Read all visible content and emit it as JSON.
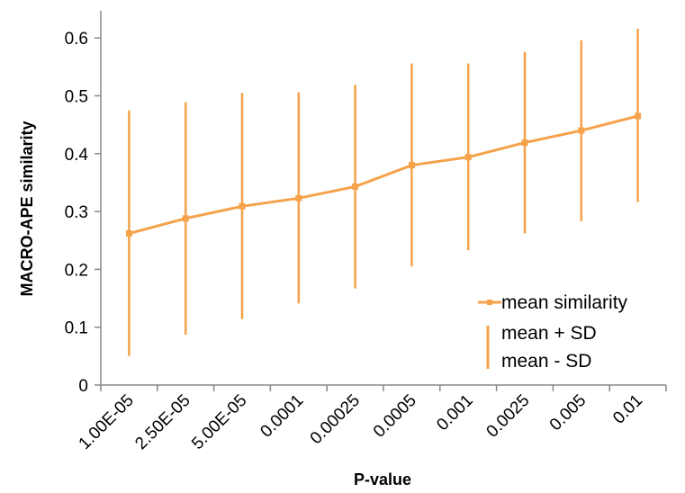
{
  "chart_data": {
    "type": "line",
    "xlabel": "P-value",
    "ylabel": "MACRO-APE similarity",
    "categories": [
      "1.00E-05",
      "2.50E-05",
      "5.00E-05",
      "0.0001",
      "0.00025",
      "0.0005",
      "0.001",
      "0.0025",
      "0.005",
      "0.01"
    ],
    "yticks": [
      "0",
      "0.1",
      "0.2",
      "0.3",
      "0.4",
      "0.5",
      "0.6"
    ],
    "ylim": [
      0,
      0.65
    ],
    "grid": false,
    "legend_position": "right",
    "series": [
      {
        "name": "mean similarity",
        "kind": "line-markers",
        "values": [
          0.262,
          0.288,
          0.309,
          0.323,
          0.343,
          0.38,
          0.394,
          0.419,
          0.44,
          0.465
        ]
      },
      {
        "name": "mean + SD",
        "kind": "error-upper",
        "values": [
          0.475,
          0.489,
          0.505,
          0.506,
          0.519,
          0.556,
          0.556,
          0.576,
          0.596,
          0.616
        ]
      },
      {
        "name": "mean - SD",
        "kind": "error-lower",
        "values": [
          0.05,
          0.087,
          0.114,
          0.141,
          0.167,
          0.205,
          0.233,
          0.262,
          0.283,
          0.316
        ]
      }
    ],
    "color": "#F5A24A"
  }
}
